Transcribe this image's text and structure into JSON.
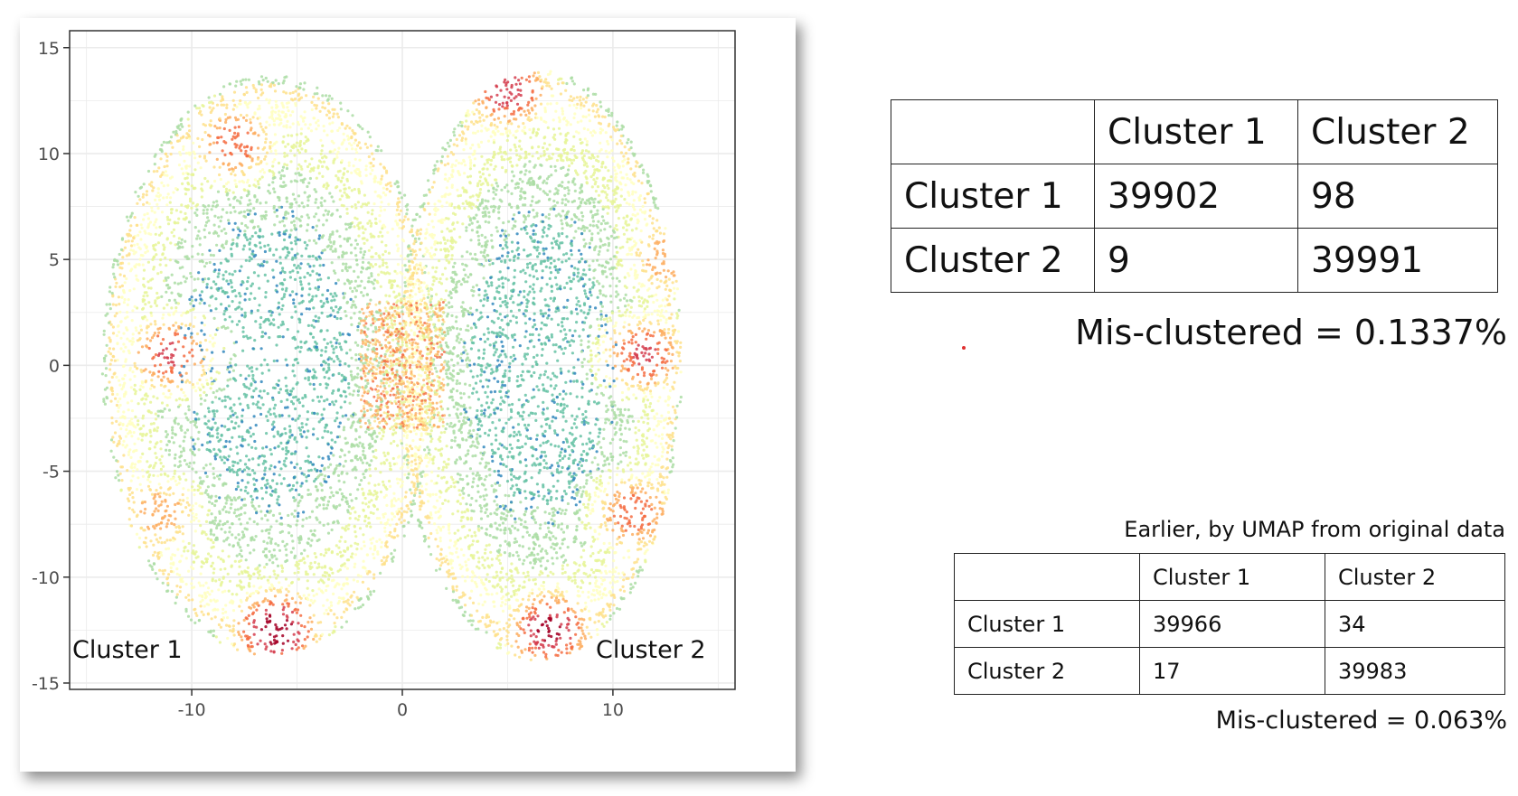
{
  "chart_data": {
    "type": "scatter",
    "title": "",
    "xlabel": "",
    "ylabel": "",
    "xlim": [
      -15.8,
      15.8
    ],
    "ylim": [
      -15.3,
      15.8
    ],
    "x_ticks": [
      -10,
      0,
      10
    ],
    "y_ticks": [
      15,
      10,
      5,
      0,
      -5,
      -10,
      -15
    ],
    "x_tick_labels": [
      "-10",
      "0",
      "10"
    ],
    "y_tick_labels": [
      "15",
      "10",
      "5",
      "0",
      "-5",
      "-10",
      "-15"
    ],
    "grid": true,
    "color_scale": "spectral (blue = low density, red = high density)",
    "color_stops": [
      "#3288bd",
      "#66c2a5",
      "#abdda4",
      "#e6f598",
      "#ffffbf",
      "#fee08b",
      "#fdae61",
      "#f46d43",
      "#d53e4f",
      "#a50026"
    ],
    "clusters": [
      {
        "label": "Cluster 1",
        "center": [
          -6.3,
          0.0
        ],
        "x_range": [
          -14.2,
          1.7
        ],
        "y_range": [
          -13.6,
          13.8
        ]
      },
      {
        "label": "Cluster 2",
        "center": [
          6.5,
          0.0
        ],
        "x_range": [
          1.2,
          14.8
        ],
        "y_range": [
          -14.0,
          13.9
        ]
      }
    ],
    "high_density_regions": [
      {
        "cluster": "Cluster 1",
        "x": -6.0,
        "y": -12.5,
        "level": 1.0
      },
      {
        "cluster": "Cluster 1",
        "x": -11.0,
        "y": 0.5,
        "level": 0.85
      },
      {
        "cluster": "Cluster 1",
        "x": -8.0,
        "y": 10.5,
        "level": 0.8
      },
      {
        "cluster": "Cluster 1",
        "x": -11.5,
        "y": -7.0,
        "level": 0.7
      },
      {
        "cluster": "Cluster 2",
        "x": 7.0,
        "y": -12.5,
        "level": 0.95
      },
      {
        "cluster": "Cluster 2",
        "x": 5.0,
        "y": 13.0,
        "level": 0.9
      },
      {
        "cluster": "Cluster 2",
        "x": 11.5,
        "y": 0.5,
        "level": 0.85
      },
      {
        "cluster": "Cluster 2",
        "x": 11.0,
        "y": -7.0,
        "level": 0.8
      },
      {
        "cluster": "Cluster 2",
        "x": 12.5,
        "y": 5.0,
        "level": 0.7
      }
    ]
  },
  "plot_labels": {
    "cluster1": "Cluster 1",
    "cluster2": "Cluster 2"
  },
  "main_table": {
    "header": [
      "",
      "Cluster 1",
      "Cluster 2"
    ],
    "rows": [
      [
        "Cluster 1",
        "39902",
        "98"
      ],
      [
        "Cluster 2",
        "9",
        "39991"
      ]
    ],
    "misclustered": "Mis-clustered = 0.1337%"
  },
  "earlier_table": {
    "caption": "Earlier, by UMAP from original data",
    "header": [
      "",
      "Cluster 1",
      "Cluster 2"
    ],
    "rows": [
      [
        "Cluster 1",
        "39966",
        "34"
      ],
      [
        "Cluster 2",
        "17",
        "39983"
      ]
    ],
    "misclustered": "Mis-clustered = 0.063%"
  },
  "colors": {
    "grid": "#ebebeb",
    "axis_frame": "#333333",
    "accent_dot": "#e03030"
  }
}
